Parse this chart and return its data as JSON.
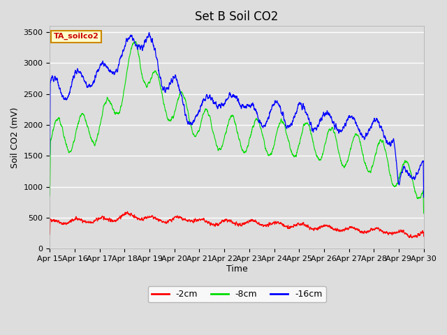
{
  "title": "Set B Soil CO2",
  "ylabel": "Soil CO2 (mV)",
  "xlabel": "Time",
  "annotation": "TA_soilco2",
  "annotation_bg": "#ffffcc",
  "annotation_border": "#cc8800",
  "annotation_text_color": "#cc0000",
  "xticklabels": [
    "Apr 15",
    "Apr 16",
    "Apr 17",
    "Apr 18",
    "Apr 19",
    "Apr 20",
    "Apr 21",
    "Apr 22",
    "Apr 23",
    "Apr 24",
    "Apr 25",
    "Apr 26",
    "Apr 27",
    "Apr 28",
    "Apr 29",
    "Apr 30"
  ],
  "ylim": [
    0,
    3600
  ],
  "yticks": [
    0,
    500,
    1000,
    1500,
    2000,
    2500,
    3000,
    3500
  ],
  "colors": {
    "line_2cm": "#ff0000",
    "line_8cm": "#00dd00",
    "line_16cm": "#0000ff"
  },
  "legend_labels": [
    "-2cm",
    "-8cm",
    "-16cm"
  ],
  "fig_bg": "#dddddd",
  "plot_bg": "#dddddd",
  "grid_color": "#ffffff",
  "title_fontsize": 12,
  "label_fontsize": 9,
  "tick_fontsize": 8
}
